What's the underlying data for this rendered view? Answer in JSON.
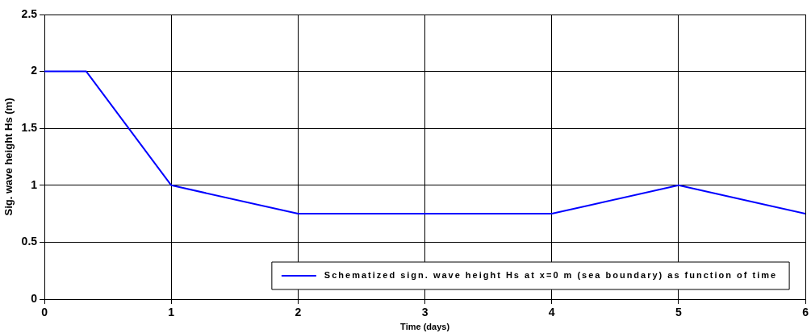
{
  "chart_data": {
    "type": "line",
    "xlabel": "Time (days)",
    "ylabel": "Sig. wave height Hs (m)",
    "x": [
      0,
      0.33,
      1,
      2,
      4,
      5,
      6
    ],
    "series": [
      {
        "name": "Schematized sign. wave height Hs at x=0 m (sea boundary) as function of time",
        "color": "#0000ff",
        "values": [
          2,
          2,
          1,
          0.75,
          0.75,
          1,
          0.75
        ]
      }
    ],
    "xlim": [
      0,
      6
    ],
    "xticks": [
      0,
      1,
      2,
      3,
      4,
      5,
      6
    ],
    "ylim": [
      0,
      2.5
    ],
    "yticks": [
      0,
      0.5,
      1,
      1.5,
      2,
      2.5
    ],
    "grid": true,
    "legend": "bottom right",
    "marker": "none",
    "line_style": "solid"
  }
}
